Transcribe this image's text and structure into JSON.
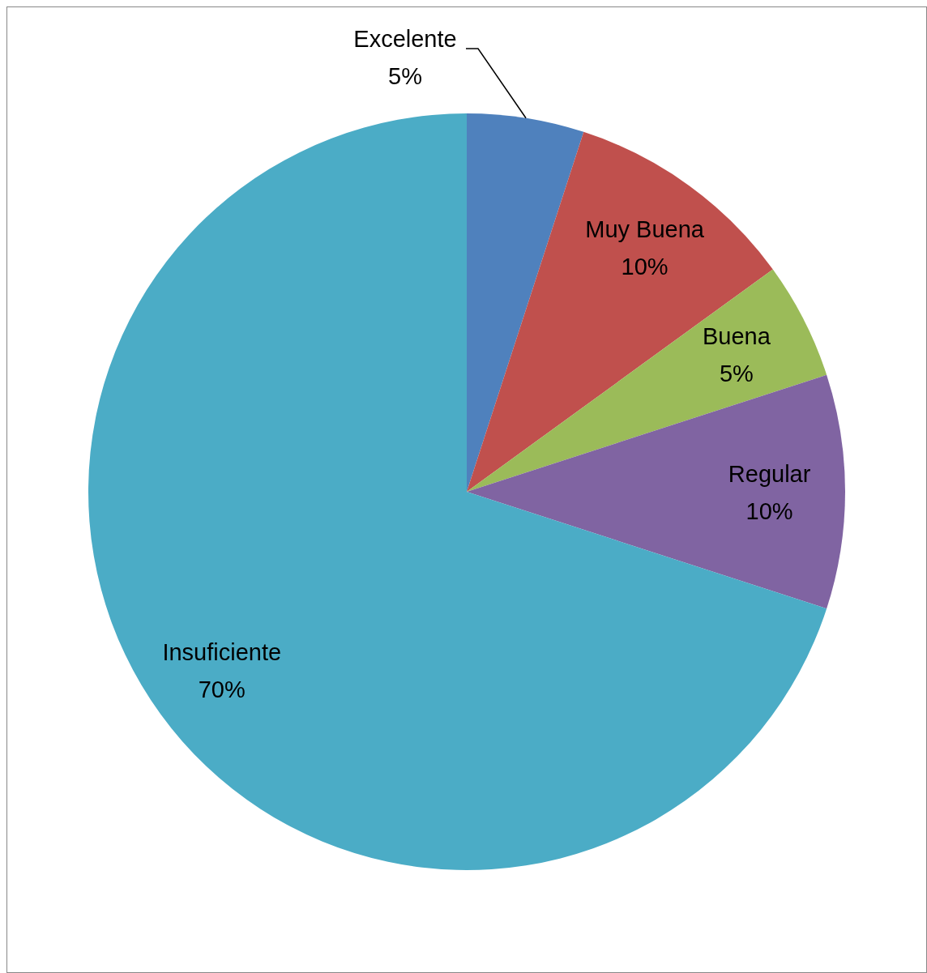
{
  "chart_data": {
    "type": "pie",
    "categories": [
      "Excelente",
      "Muy Buena",
      "Buena",
      "Regular",
      "Insuficiente"
    ],
    "values": [
      5,
      10,
      5,
      10,
      70
    ],
    "value_labels": [
      "5%",
      "10%",
      "5%",
      "10%",
      "70%"
    ],
    "colors": [
      "#4f81bd",
      "#c0504d",
      "#9bbb59",
      "#8064a2",
      "#4bacc6"
    ],
    "legend": false
  }
}
